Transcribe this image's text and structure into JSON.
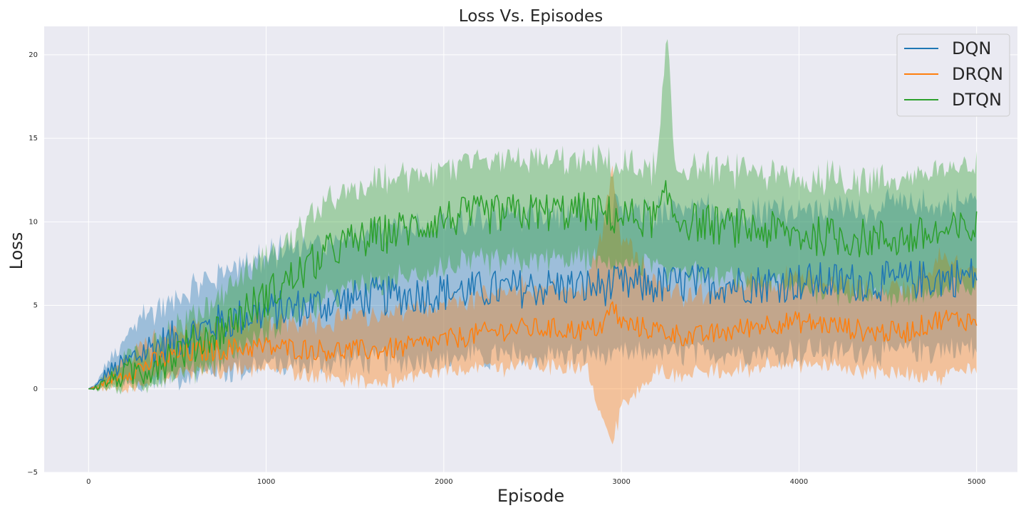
{
  "chart_data": {
    "type": "line",
    "title": "Loss Vs. Episodes",
    "xlabel": "Episode",
    "ylabel": "Loss",
    "xlim": [
      -250,
      5230
    ],
    "ylim": [
      -5,
      21.7
    ],
    "xticks": [
      0,
      1000,
      2000,
      3000,
      4000,
      5000
    ],
    "yticks": [
      -5,
      0,
      5,
      10,
      15,
      20
    ],
    "grid": true,
    "legend_position": "top-right",
    "series": [
      {
        "name": "DQN",
        "color": "#1f77b4",
        "x": [
          0,
          50,
          100,
          200,
          300,
          400,
          500,
          600,
          700,
          800,
          900,
          1000,
          1200,
          1400,
          1600,
          1800,
          2000,
          2200,
          2400,
          2600,
          2800,
          3000,
          3200,
          3400,
          3600,
          3800,
          4000,
          4200,
          4400,
          4600,
          4800,
          5000
        ],
        "values": [
          0,
          0.2,
          1.0,
          1.4,
          2.2,
          2.6,
          3.0,
          3.4,
          3.8,
          4.1,
          4.4,
          4.6,
          4.9,
          5.2,
          5.5,
          5.6,
          5.8,
          5.9,
          6.0,
          6.1,
          6.1,
          6.2,
          6.2,
          6.3,
          6.3,
          6.3,
          6.4,
          6.4,
          6.4,
          6.5,
          6.6,
          6.8
        ],
        "lower": [
          0,
          0.1,
          0.6,
          0.5,
          0.6,
          0.8,
          1.0,
          1.2,
          1.3,
          1.4,
          1.6,
          1.7,
          1.8,
          1.9,
          2.0,
          2.0,
          2.1,
          2.2,
          2.2,
          2.3,
          2.3,
          2.3,
          2.4,
          2.4,
          2.4,
          2.5,
          2.5,
          2.5,
          2.5,
          2.6,
          2.6,
          2.7
        ],
        "upper": [
          0,
          0.3,
          1.4,
          2.4,
          3.8,
          4.6,
          5.0,
          5.6,
          6.3,
          6.8,
          7.2,
          7.5,
          7.9,
          8.4,
          8.9,
          9.2,
          9.5,
          9.7,
          9.8,
          9.9,
          9.9,
          10.1,
          10.1,
          10.2,
          10.2,
          10.2,
          10.3,
          10.3,
          10.3,
          10.5,
          10.6,
          10.9
        ]
      },
      {
        "name": "DRQN",
        "color": "#ff7f0e",
        "x": [
          0,
          50,
          100,
          200,
          300,
          400,
          500,
          600,
          700,
          800,
          900,
          1000,
          1200,
          1400,
          1600,
          1800,
          2000,
          2200,
          2400,
          2600,
          2800,
          2900,
          2950,
          3000,
          3200,
          3400,
          3600,
          3800,
          4000,
          4200,
          4400,
          4600,
          4800,
          5000
        ],
        "values": [
          0,
          0.1,
          0.4,
          0.9,
          1.3,
          1.7,
          2.0,
          2.2,
          2.3,
          2.4,
          2.5,
          2.5,
          2.4,
          2.3,
          2.3,
          2.5,
          2.9,
          3.3,
          3.6,
          3.6,
          3.5,
          3.8,
          5.0,
          3.9,
          3.5,
          3.1,
          3.4,
          3.9,
          4.0,
          3.8,
          3.4,
          3.4,
          4.2,
          4.1
        ],
        "lower": [
          0,
          0.0,
          0.1,
          0.3,
          0.6,
          0.9,
          1.1,
          1.3,
          1.4,
          1.5,
          1.5,
          1.5,
          1.3,
          1.0,
          0.6,
          0.9,
          1.3,
          1.5,
          1.7,
          1.7,
          1.6,
          -1.5,
          -3.0,
          -0.8,
          1.4,
          1.1,
          1.4,
          1.7,
          1.8,
          1.6,
          1.3,
          1.2,
          1.0,
          1.6
        ],
        "upper": [
          0,
          0.2,
          0.7,
          1.5,
          2.0,
          2.5,
          2.9,
          3.1,
          3.2,
          3.3,
          3.5,
          3.5,
          3.5,
          3.6,
          4.0,
          4.1,
          4.5,
          5.1,
          5.5,
          5.5,
          5.4,
          9.0,
          12.5,
          8.6,
          5.6,
          5.1,
          5.4,
          6.1,
          6.2,
          6.0,
          5.5,
          5.6,
          7.4,
          6.6
        ]
      },
      {
        "name": "DTQN",
        "color": "#2ca02c",
        "x": [
          0,
          50,
          100,
          200,
          300,
          400,
          500,
          600,
          700,
          800,
          900,
          1000,
          1100,
          1200,
          1300,
          1400,
          1500,
          1600,
          1800,
          2000,
          2200,
          2400,
          2600,
          2800,
          3000,
          3200,
          3260,
          3300,
          3400,
          3600,
          3800,
          4000,
          4200,
          4400,
          4600,
          4800,
          5000
        ],
        "values": [
          0,
          0.1,
          0.4,
          0.8,
          1.2,
          1.7,
          2.2,
          2.7,
          3.3,
          4.0,
          4.8,
          5.5,
          6.3,
          7.0,
          7.8,
          8.5,
          8.8,
          9.1,
          9.6,
          10.2,
          10.4,
          10.5,
          10.6,
          10.6,
          10.3,
          10.2,
          11.5,
          10.3,
          10.0,
          9.7,
          9.5,
          9.2,
          9.1,
          9.0,
          9.0,
          9.3,
          9.6
        ],
        "lower": [
          0,
          0.0,
          0.1,
          0.3,
          0.6,
          0.9,
          1.2,
          1.5,
          2.0,
          2.5,
          3.1,
          3.6,
          4.3,
          4.9,
          5.5,
          6.0,
          6.3,
          6.5,
          7.0,
          7.6,
          7.8,
          7.9,
          8.0,
          8.0,
          7.7,
          7.6,
          7.0,
          7.6,
          7.3,
          6.9,
          6.6,
          6.3,
          6.1,
          5.9,
          5.9,
          6.1,
          6.4
        ],
        "upper": [
          0,
          0.2,
          0.7,
          1.3,
          1.8,
          2.5,
          3.2,
          3.9,
          4.6,
          5.5,
          6.5,
          7.4,
          8.3,
          9.1,
          10.1,
          11.0,
          11.3,
          11.7,
          12.2,
          12.8,
          13.0,
          13.1,
          13.2,
          13.2,
          12.9,
          12.8,
          20.3,
          13.0,
          12.7,
          12.5,
          12.4,
          12.1,
          12.1,
          12.1,
          12.1,
          12.5,
          12.8
        ]
      }
    ]
  }
}
